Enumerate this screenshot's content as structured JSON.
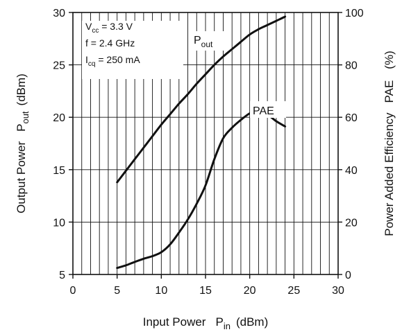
{
  "chart_data": {
    "type": "line",
    "xlabel": "Input Power",
    "xlabel_symbol": "P",
    "xlabel_sub": "in",
    "xlabel_unit": "(dBm)",
    "ylabel_left": "Output Power",
    "ylabel_left_symbol": "P",
    "ylabel_left_sub": "out",
    "ylabel_left_unit": "(dBm)",
    "ylabel_right": "Power Added Efficiency",
    "ylabel_right_symbol": "PAE",
    "ylabel_right_unit": "(%)",
    "xlim": [
      0,
      30
    ],
    "ylim_left": [
      5,
      30
    ],
    "ylim_right": [
      0,
      100
    ],
    "x_ticks": [
      0,
      5,
      10,
      15,
      20,
      25,
      30
    ],
    "y_left_ticks": [
      5,
      10,
      15,
      20,
      25,
      30
    ],
    "y_right_ticks": [
      0,
      20,
      40,
      60,
      80,
      100
    ],
    "grid": true,
    "conditions": [
      {
        "symbol": "V",
        "sub": "cc",
        "value": " = 3.3 V"
      },
      {
        "symbol": "f",
        "sub": "",
        "value": " = 2.4 GHz"
      },
      {
        "symbol": "I",
        "sub": "cq",
        "value": " = 250 mA"
      }
    ],
    "series": [
      {
        "name": "Pout",
        "label_symbol": "P",
        "label_sub": "out",
        "axis": "left",
        "x": [
          5,
          6,
          7,
          8,
          9,
          10,
          11,
          12,
          13,
          14,
          15,
          16,
          17,
          18,
          19,
          20,
          21,
          22,
          23,
          24
        ],
        "y": [
          13.8,
          14.9,
          16.0,
          17.1,
          18.2,
          19.3,
          20.3,
          21.3,
          22.2,
          23.2,
          24.1,
          25.0,
          25.8,
          26.5,
          27.2,
          27.9,
          28.4,
          28.8,
          29.2,
          29.6
        ]
      },
      {
        "name": "PAE",
        "label_symbol": "PAE",
        "label_sub": "",
        "axis": "right",
        "x": [
          5,
          6,
          7,
          8,
          9,
          10,
          11,
          12,
          13,
          14,
          15,
          16,
          17,
          18,
          19,
          20,
          20.8,
          22,
          23,
          24
        ],
        "y": [
          2.5,
          3.5,
          4.8,
          6,
          7,
          8.5,
          11.5,
          16,
          21,
          27,
          34,
          44,
          52,
          56,
          59,
          61.5,
          62.5,
          61,
          58.5,
          56.5
        ]
      }
    ]
  }
}
